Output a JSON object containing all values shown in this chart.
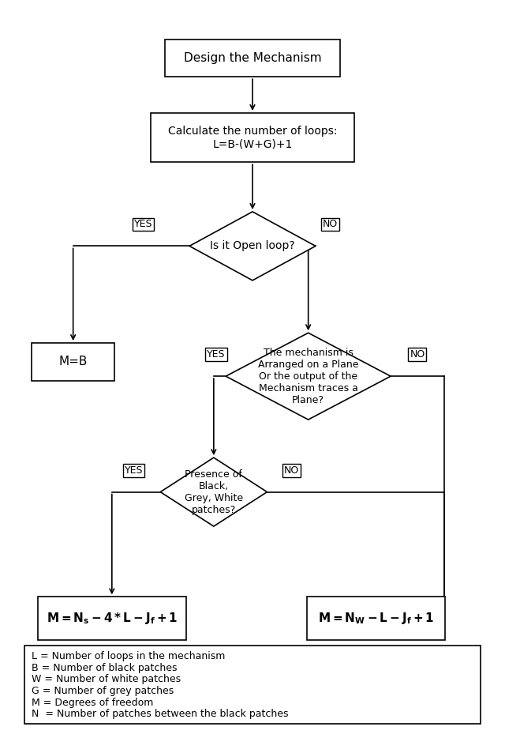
{
  "bg_color": "#ffffff",
  "box_color": "#ffffff",
  "box_edge_color": "#000000",
  "text_color": "#000000",
  "legend_lines": [
    "L = Number of loops in the mechanism",
    "B = Number of black patches",
    "W = Number of white patches",
    "G = Number of grey patches",
    "M = Degrees of freedom",
    "N  = Number of patches between the black patches"
  ]
}
